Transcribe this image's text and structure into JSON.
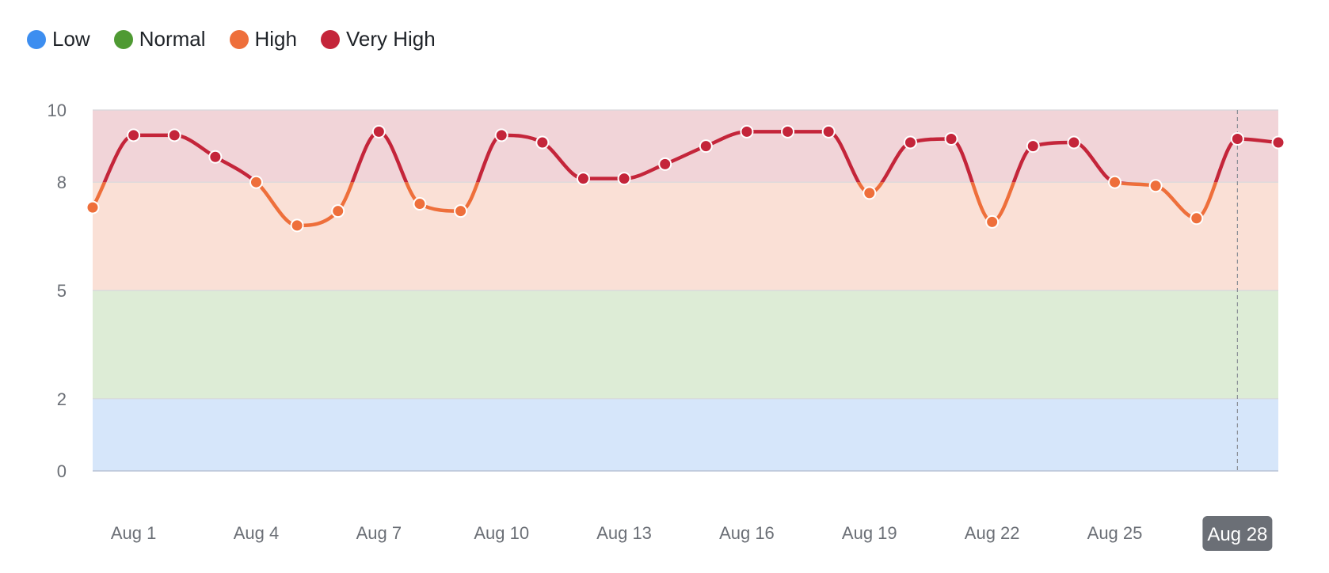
{
  "legend": [
    {
      "label": "Low",
      "color": "#3d8ef0"
    },
    {
      "label": "Normal",
      "color": "#4f9a33"
    },
    {
      "label": "High",
      "color": "#ee6f3b"
    },
    {
      "label": "Very High",
      "color": "#c4253a"
    }
  ],
  "chart_data": {
    "type": "line",
    "bands": [
      {
        "name": "Low",
        "from": 0,
        "to": 2,
        "color": "#d6e6fa"
      },
      {
        "name": "Normal",
        "from": 2,
        "to": 5,
        "color": "#ddecd6"
      },
      {
        "name": "High",
        "from": 5,
        "to": 8,
        "color": "#fae0d6"
      },
      {
        "name": "Very High",
        "from": 8,
        "to": 10,
        "color": "#f1d4d8"
      }
    ],
    "ylim": [
      0,
      10
    ],
    "yticks": [
      0,
      2,
      5,
      8,
      10
    ],
    "x_start": "Jul 30",
    "x_end": "Aug 28",
    "xticks": [
      "Aug 1",
      "Aug 4",
      "Aug 7",
      "Aug 10",
      "Aug 13",
      "Aug 16",
      "Aug 19",
      "Aug 22",
      "Aug 25",
      "Aug 28"
    ],
    "xticks_day": [
      1,
      4,
      7,
      10,
      13,
      16,
      19,
      22,
      25,
      28
    ],
    "highlighted_xtick": "Aug 28",
    "series": [
      {
        "x": [
          "Jul 31",
          "Aug 1",
          "Aug 2",
          "Aug 3",
          "Aug 4",
          "Aug 5",
          "Aug 6",
          "Aug 7",
          "Aug 8",
          "Aug 9",
          "Aug 10",
          "Aug 11",
          "Aug 12",
          "Aug 13",
          "Aug 14",
          "Aug 15",
          "Aug 16",
          "Aug 17",
          "Aug 18",
          "Aug 19",
          "Aug 20",
          "Aug 21",
          "Aug 22",
          "Aug 23",
          "Aug 24",
          "Aug 25",
          "Aug 26",
          "Aug 27",
          "Aug 28",
          "Aug 29"
        ],
        "values": [
          7.3,
          9.3,
          9.3,
          8.7,
          8.0,
          6.8,
          7.2,
          9.4,
          7.4,
          7.2,
          9.3,
          9.1,
          8.1,
          8.1,
          8.5,
          9.0,
          9.4,
          9.4,
          9.4,
          7.7,
          9.1,
          9.2,
          6.9,
          9.0,
          9.1,
          8.0,
          7.9,
          7.0,
          9.2,
          9.1
        ]
      }
    ],
    "colors": {
      "high_line": "#ee6f3b",
      "very_high_line": "#c4253a",
      "grid": "#d6d8dc",
      "axis": "#b9c3d6",
      "active_tick_bg": "#6b6f76"
    }
  }
}
